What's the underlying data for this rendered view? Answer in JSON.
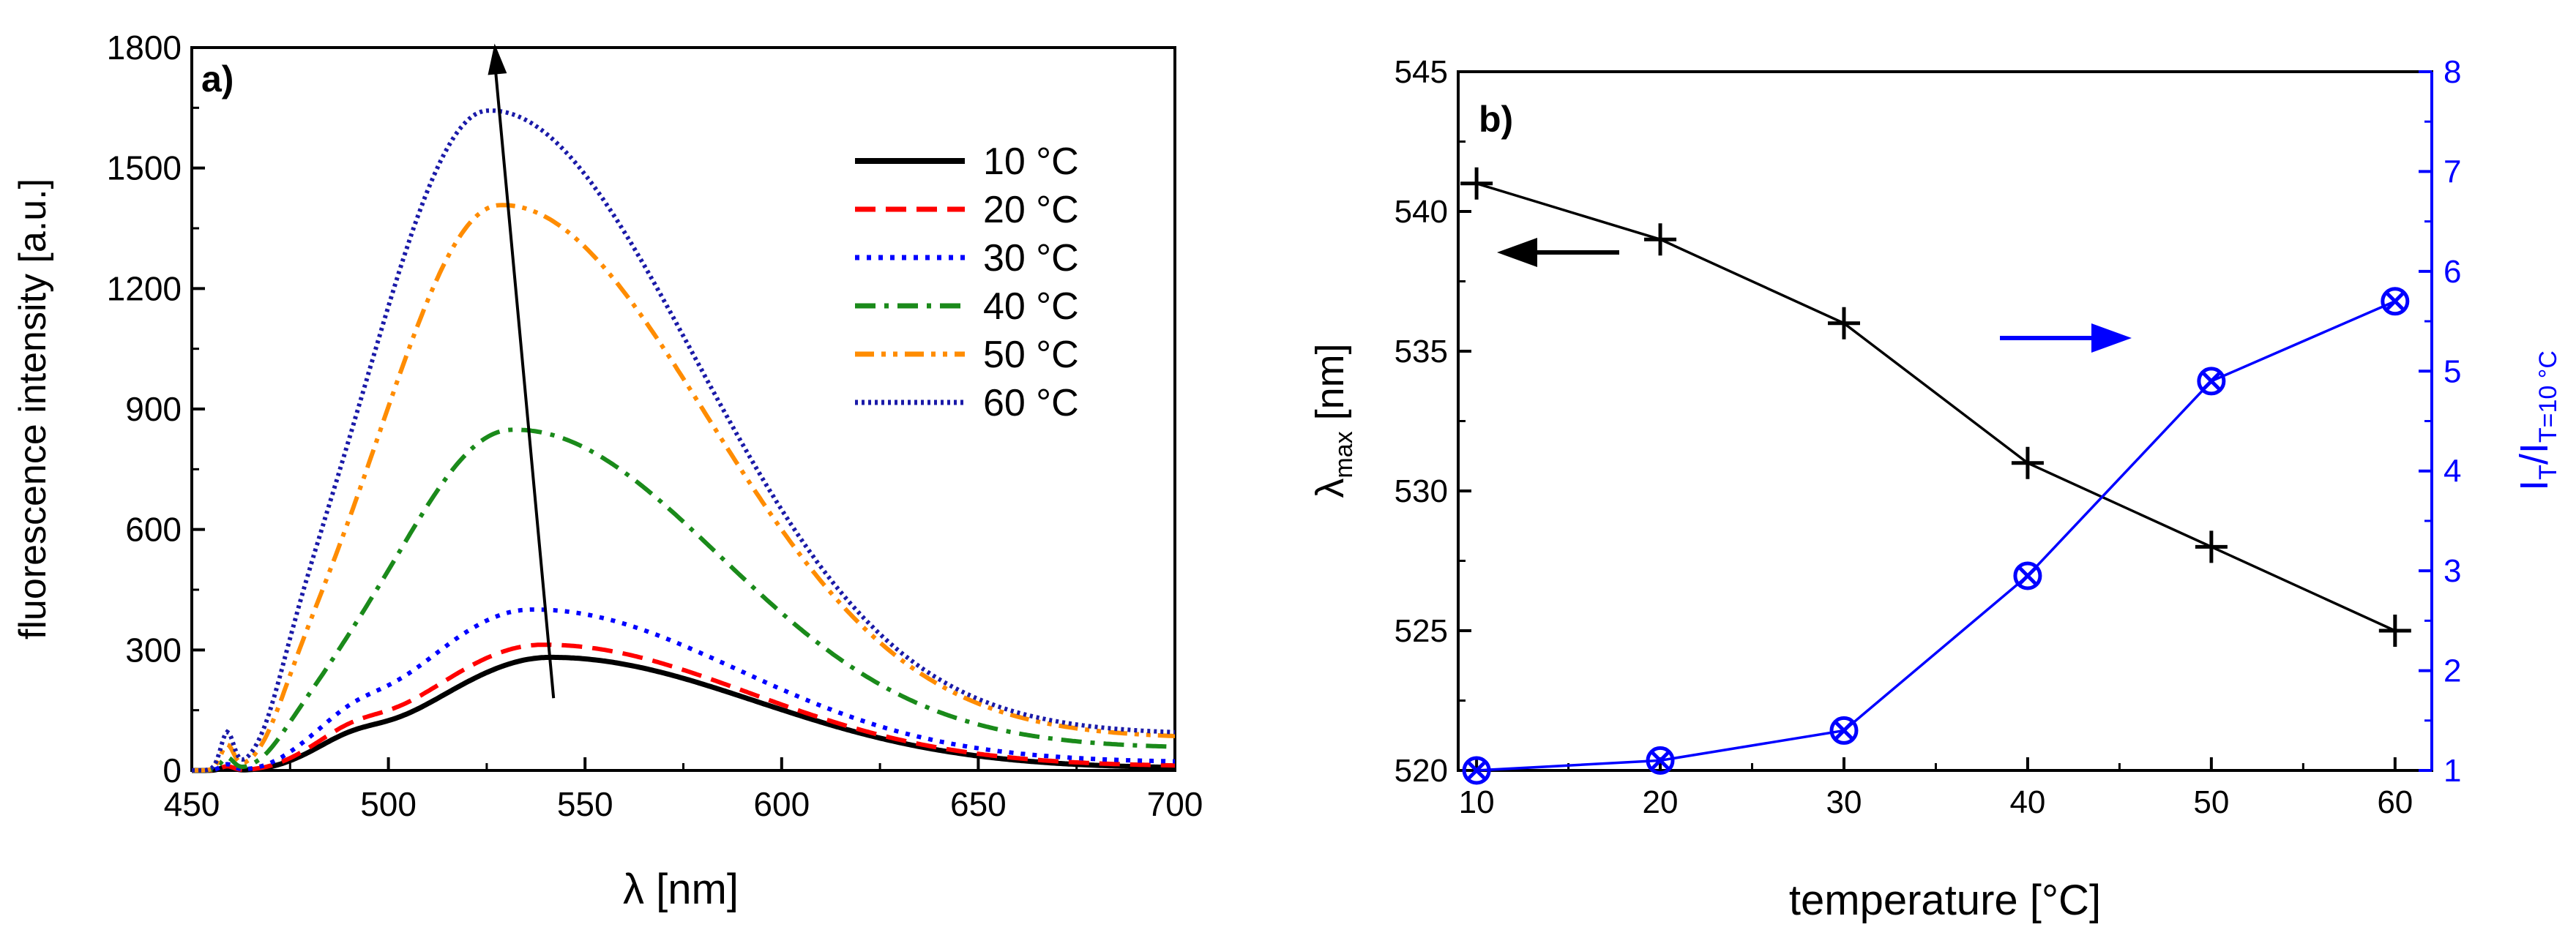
{
  "colors": {
    "axis": "#000000",
    "blue_axis": "#0000ff",
    "red": "#ff0000",
    "green": "#1a8a1a",
    "orange": "#ff8c00",
    "navy": "#1a1aa8",
    "blue": "#0000ff"
  },
  "chart_data": [
    {
      "type": "line",
      "panel_label": "a)",
      "xlabel": "λ [nm]",
      "ylabel": "fluorescence intensity [a.u.]",
      "xlim": [
        450,
        700
      ],
      "ylim": [
        0,
        1800
      ],
      "xticks": [
        "450",
        "500",
        "550",
        "600",
        "650",
        "700"
      ],
      "yticks": [
        "0",
        "300",
        "600",
        "900",
        "1200",
        "1500",
        "1800"
      ],
      "legend_position": "top-right",
      "annotation": "arrow pointing from (542, 180) to (527, 1810): peak shift with temperature",
      "series": [
        {
          "name": "10 °C",
          "style": "solid",
          "color": "#000000",
          "peak": 280,
          "center": 541,
          "baseline": 5,
          "shoulder": 30,
          "spike": 8
        },
        {
          "name": "20 °C",
          "style": "dashed",
          "color": "#ff0000",
          "peak": 310,
          "center": 539,
          "baseline": 10,
          "shoulder": 35,
          "spike": 10
        },
        {
          "name": "30 °C",
          "style": "dotted",
          "color": "#0000ff",
          "peak": 395,
          "center": 536,
          "baseline": 20,
          "shoulder": 40,
          "spike": 15
        },
        {
          "name": "40 °C",
          "style": "dashdot",
          "color": "#1a8a1a",
          "peak": 835,
          "center": 531,
          "baseline": 55,
          "shoulder": 10,
          "spike": 30
        },
        {
          "name": "50 °C",
          "style": "dashdotdot",
          "color": "#ff8c00",
          "peak": 1390,
          "center": 528,
          "baseline": 80,
          "shoulder": 0,
          "spike": 60
        },
        {
          "name": "60 °C",
          "style": "shortdot",
          "color": "#1a1aa8",
          "peak": 1625,
          "center": 525,
          "baseline": 90,
          "shoulder": 0,
          "spike": 90
        }
      ]
    },
    {
      "type": "line",
      "panel_label": "b)",
      "xlabel": "temperature [°C]",
      "ylabel_left": "λ",
      "ylabel_left_sub": "max",
      "ylabel_left_unit": " [nm]",
      "ylabel_right_I": "I",
      "ylabel_right_T": "T",
      "ylabel_right_slash": "/I",
      "ylabel_right_sub": "T=10 °C",
      "xlim": [
        9,
        62
      ],
      "ylim_left": [
        520,
        545
      ],
      "ylim_right": [
        1,
        8
      ],
      "xticks": [
        "10",
        "20",
        "30",
        "40",
        "50",
        "60"
      ],
      "yticks_left": [
        "520",
        "525",
        "530",
        "535",
        "540",
        "545"
      ],
      "yticks_right": [
        "1",
        "2",
        "3",
        "4",
        "5",
        "6",
        "7",
        "8"
      ],
      "x": [
        10,
        20,
        30,
        40,
        50,
        60
      ],
      "series": [
        {
          "name": "λmax",
          "axis": "left",
          "marker": "plus",
          "color": "#000000",
          "values": [
            541,
            539,
            536,
            531,
            528,
            525
          ]
        },
        {
          "name": "IT/IT=10 °C",
          "axis": "right",
          "marker": "circle-x",
          "color": "#0000ff",
          "values": [
            1.0,
            1.1,
            1.4,
            2.95,
            4.9,
            5.7
          ]
        }
      ],
      "annotations": [
        "left arrow indicating left axis",
        "right arrow indicating right axis"
      ]
    }
  ]
}
